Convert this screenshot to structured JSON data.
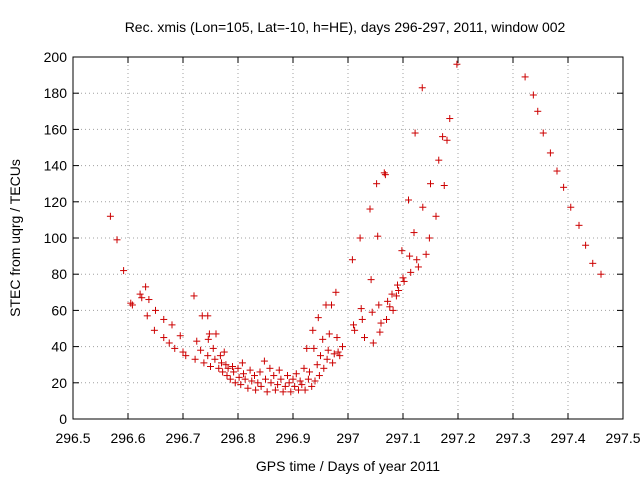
{
  "chart_data": {
    "type": "scatter",
    "title": "Rec. xmis (Lon=105, Lat=-10, h=HE), days 296-297, 2011, window 002",
    "xlabel": "GPS time / Days of year 2011",
    "ylabel": "STEC from uqrg / TECUs",
    "xlim": [
      296.5,
      297.5
    ],
    "ylim": [
      0,
      200
    ],
    "xticks": [
      296.5,
      296.6,
      296.7,
      296.8,
      296.9,
      297.0,
      297.1,
      297.2,
      297.3,
      297.4,
      297.5
    ],
    "xtick_labels": [
      "296.5",
      "296.6",
      "296.7",
      "296.8",
      "296.9",
      "297",
      "297.1",
      "297.2",
      "297.3",
      "297.4",
      "297.5"
    ],
    "yticks": [
      0,
      20,
      40,
      60,
      80,
      100,
      120,
      140,
      160,
      180,
      200
    ],
    "ytick_labels": [
      "0",
      "20",
      "40",
      "60",
      "80",
      "100",
      "120",
      "140",
      "160",
      "180",
      "200"
    ],
    "grid": true,
    "marker": "+",
    "color": "#cc0000",
    "series": [
      {
        "name": "STEC",
        "points": [
          [
            296.568,
            112
          ],
          [
            296.58,
            99
          ],
          [
            296.592,
            82
          ],
          [
            296.605,
            64
          ],
          [
            296.608,
            63
          ],
          [
            296.622,
            69
          ],
          [
            296.625,
            67
          ],
          [
            296.632,
            73
          ],
          [
            296.638,
            66
          ],
          [
            296.635,
            57
          ],
          [
            296.65,
            60
          ],
          [
            296.648,
            49
          ],
          [
            296.665,
            55
          ],
          [
            296.665,
            45
          ],
          [
            296.68,
            52
          ],
          [
            296.675,
            42
          ],
          [
            296.685,
            39
          ],
          [
            296.695,
            46
          ],
          [
            296.7,
            37
          ],
          [
            296.705,
            35
          ],
          [
            296.72,
            68
          ],
          [
            296.725,
            43
          ],
          [
            296.722,
            33
          ],
          [
            296.735,
            57
          ],
          [
            296.732,
            38
          ],
          [
            296.738,
            31
          ],
          [
            296.745,
            57
          ],
          [
            296.748,
            47
          ],
          [
            296.746,
            44
          ],
          [
            296.745,
            35
          ],
          [
            296.75,
            29
          ],
          [
            296.755,
            39
          ],
          [
            296.758,
            33
          ],
          [
            296.76,
            47
          ],
          [
            296.765,
            28
          ],
          [
            296.768,
            35
          ],
          [
            296.77,
            31
          ],
          [
            296.772,
            26
          ],
          [
            296.775,
            37
          ],
          [
            296.778,
            30
          ],
          [
            296.78,
            24
          ],
          [
            296.782,
            28
          ],
          [
            296.786,
            22
          ],
          [
            296.79,
            29
          ],
          [
            296.792,
            26
          ],
          [
            296.795,
            20
          ],
          [
            296.8,
            28
          ],
          [
            296.802,
            23
          ],
          [
            296.805,
            19
          ],
          [
            296.808,
            31
          ],
          [
            296.81,
            25
          ],
          [
            296.813,
            22
          ],
          [
            296.818,
            17
          ],
          [
            296.822,
            27
          ],
          [
            296.825,
            21
          ],
          [
            296.83,
            24
          ],
          [
            296.832,
            16
          ],
          [
            296.836,
            20
          ],
          [
            296.84,
            26
          ],
          [
            296.842,
            18
          ],
          [
            296.848,
            32
          ],
          [
            296.85,
            22
          ],
          [
            296.853,
            15
          ],
          [
            296.858,
            28
          ],
          [
            296.86,
            20
          ],
          [
            296.865,
            24
          ],
          [
            296.868,
            16
          ],
          [
            296.872,
            19
          ],
          [
            296.875,
            27
          ],
          [
            296.878,
            22
          ],
          [
            296.882,
            15
          ],
          [
            296.886,
            18
          ],
          [
            296.89,
            24
          ],
          [
            296.893,
            20
          ],
          [
            296.896,
            15
          ],
          [
            296.9,
            22
          ],
          [
            296.903,
            18
          ],
          [
            296.906,
            25
          ],
          [
            296.91,
            16
          ],
          [
            296.913,
            21
          ],
          [
            296.916,
            19
          ],
          [
            296.92,
            28
          ],
          [
            296.922,
            16
          ],
          [
            296.925,
            39
          ],
          [
            296.928,
            22
          ],
          [
            296.93,
            26
          ],
          [
            296.934,
            18
          ],
          [
            296.936,
            49
          ],
          [
            296.938,
            39
          ],
          [
            296.94,
            21
          ],
          [
            296.944,
            30
          ],
          [
            296.946,
            56
          ],
          [
            296.948,
            24
          ],
          [
            296.95,
            35
          ],
          [
            296.954,
            44
          ],
          [
            296.956,
            28
          ],
          [
            296.96,
            63
          ],
          [
            296.962,
            33
          ],
          [
            296.964,
            38
          ],
          [
            296.966,
            47
          ],
          [
            296.97,
            63
          ],
          [
            296.972,
            31
          ],
          [
            296.975,
            36
          ],
          [
            296.978,
            70
          ],
          [
            296.98,
            45
          ],
          [
            296.982,
            37
          ],
          [
            296.985,
            35
          ],
          [
            296.99,
            40
          ],
          [
            297.008,
            88
          ],
          [
            297.01,
            52
          ],
          [
            297.012,
            49
          ],
          [
            297.022,
            100
          ],
          [
            297.024,
            61
          ],
          [
            297.026,
            55
          ],
          [
            297.03,
            45
          ],
          [
            297.04,
            116
          ],
          [
            297.042,
            77
          ],
          [
            297.044,
            59
          ],
          [
            297.046,
            42
          ],
          [
            297.052,
            130
          ],
          [
            297.054,
            101
          ],
          [
            297.056,
            63
          ],
          [
            297.058,
            48
          ],
          [
            297.06,
            53
          ],
          [
            297.066,
            136
          ],
          [
            297.068,
            135
          ],
          [
            297.07,
            55
          ],
          [
            297.072,
            65
          ],
          [
            297.076,
            62
          ],
          [
            297.08,
            69
          ],
          [
            297.082,
            60
          ],
          [
            297.088,
            68
          ],
          [
            297.09,
            74
          ],
          [
            297.092,
            71
          ],
          [
            297.098,
            93
          ],
          [
            297.1,
            78
          ],
          [
            297.102,
            76
          ],
          [
            297.11,
            121
          ],
          [
            297.112,
            90
          ],
          [
            297.114,
            81
          ],
          [
            297.12,
            103
          ],
          [
            297.125,
            88
          ],
          [
            297.122,
            158
          ],
          [
            297.128,
            84
          ],
          [
            297.135,
            183
          ],
          [
            297.136,
            117
          ],
          [
            297.142,
            91
          ],
          [
            297.15,
            130
          ],
          [
            297.148,
            100
          ],
          [
            297.16,
            112
          ],
          [
            297.165,
            143
          ],
          [
            297.175,
            129
          ],
          [
            297.172,
            156
          ],
          [
            297.18,
            154
          ],
          [
            297.185,
            166
          ],
          [
            297.198,
            196
          ],
          [
            297.322,
            189
          ],
          [
            297.337,
            179
          ],
          [
            297.345,
            170
          ],
          [
            297.355,
            158
          ],
          [
            297.368,
            147
          ],
          [
            297.38,
            137
          ],
          [
            297.392,
            128
          ],
          [
            297.405,
            117
          ],
          [
            297.42,
            107
          ],
          [
            297.432,
            96
          ],
          [
            297.445,
            86
          ],
          [
            297.46,
            80
          ]
        ]
      }
    ]
  }
}
